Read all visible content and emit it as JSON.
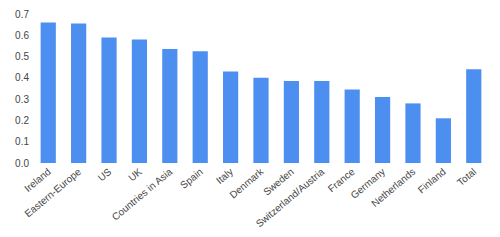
{
  "chart_data": {
    "type": "bar",
    "categories": [
      "Ireland",
      "Eastern-Europe",
      "US",
      "UK",
      "Countries in Asia",
      "Spain",
      "Italy",
      "Denmark",
      "Sweden",
      "Switzerland/Austria",
      "France",
      "Germany",
      "Netherlands",
      "Finland",
      "Total"
    ],
    "values": [
      0.66,
      0.655,
      0.59,
      0.58,
      0.535,
      0.525,
      0.43,
      0.4,
      0.385,
      0.385,
      0.345,
      0.31,
      0.28,
      0.21,
      0.44
    ],
    "color": "#4d8ff0",
    "ylim": [
      0,
      0.7
    ],
    "yticks": [
      {
        "value": 0,
        "label": "0.0"
      },
      0.1,
      0.2,
      0.3,
      0.4,
      0.5,
      0.6,
      0.7
    ],
    "grid": false
  }
}
